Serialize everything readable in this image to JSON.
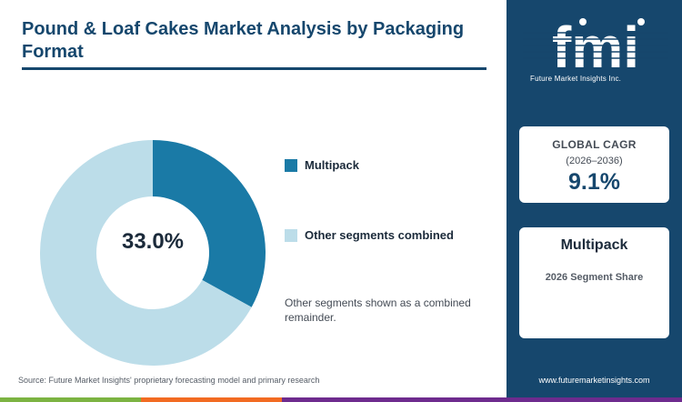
{
  "header": {
    "title": "Pound & Loaf Cakes Market Analysis by Packaging Format"
  },
  "chart_data": {
    "type": "pie",
    "donut": true,
    "center_label": "33.0%",
    "slices": [
      {
        "label": "Multipack",
        "value": 33.0,
        "color": "#1a7aa6"
      },
      {
        "label": "Other segments combined",
        "value": 67.0,
        "color": "#bcdde9"
      }
    ],
    "note": "Other segments shown as a combined remainder."
  },
  "source": "Source: Future Market Insights' proprietary forecasting model and primary research",
  "sidebar": {
    "logo_text": "fmi",
    "logo_subtitle": "Future Market Insights Inc.",
    "cagr_card": {
      "label": "GLOBAL CAGR",
      "period": "(2026–2036)",
      "value": "9.1%"
    },
    "segment_card": {
      "name": "Multipack",
      "caption": "2026 Segment Share"
    },
    "website": "www.futuremarketinsights.com"
  },
  "colors": {
    "navy": "#16476d",
    "multipack": "#1a7aa6",
    "other": "#bcdde9",
    "bar_green": "#7cb342",
    "bar_orange": "#f26b22",
    "bar_purple": "#6e2b8e"
  }
}
